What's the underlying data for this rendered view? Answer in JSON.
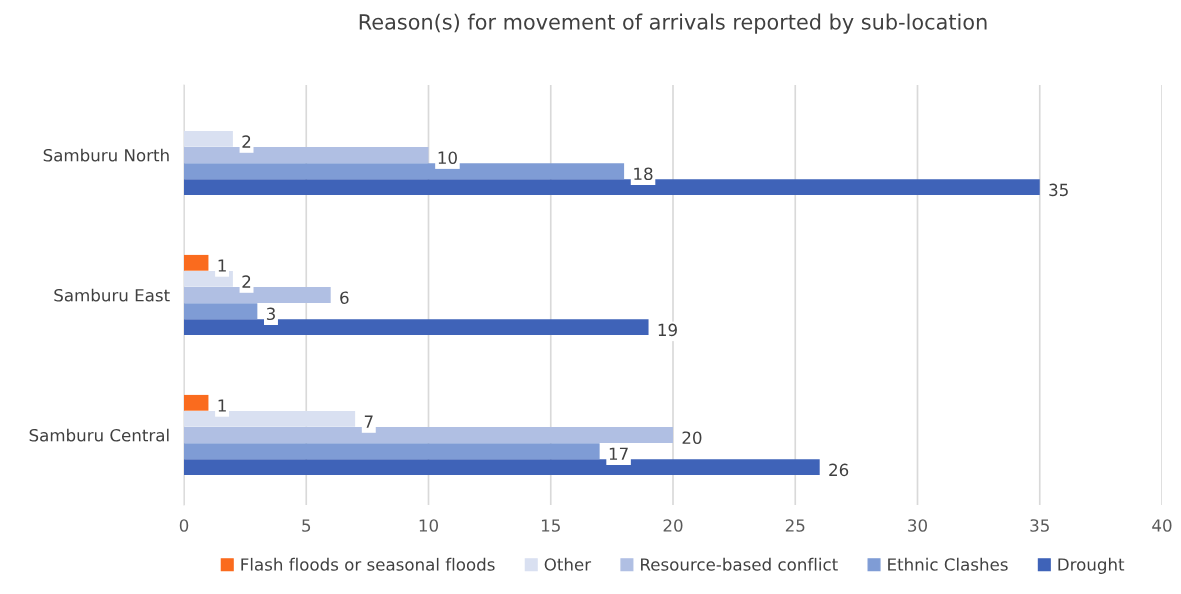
{
  "chart_data": {
    "type": "bar",
    "orientation": "horizontal",
    "title": "Reason(s) for movement of arrivals reported by sub-location",
    "categories": [
      "Samburu North",
      "Samburu East",
      "Samburu Central"
    ],
    "series": [
      {
        "name": "Flash floods or seasonal floods",
        "color": "#fa6b1e",
        "values": [
          null,
          1,
          1
        ]
      },
      {
        "name": "Other",
        "color": "#d9e0f1",
        "values": [
          2,
          2,
          7
        ]
      },
      {
        "name": "Resource-based conflict",
        "color": "#b0bfe3",
        "values": [
          10,
          6,
          20
        ]
      },
      {
        "name": "Ethnic Clashes",
        "color": "#7f9cd5",
        "values": [
          18,
          3,
          17
        ]
      },
      {
        "name": "Drought",
        "color": "#3f63b8",
        "values": [
          35,
          19,
          26
        ]
      }
    ],
    "xlim": [
      0,
      40
    ],
    "xticks": [
      0,
      5,
      10,
      15,
      20,
      25,
      30,
      35,
      40
    ],
    "grid": "x",
    "legend": "bottom",
    "data_labels": true
  }
}
